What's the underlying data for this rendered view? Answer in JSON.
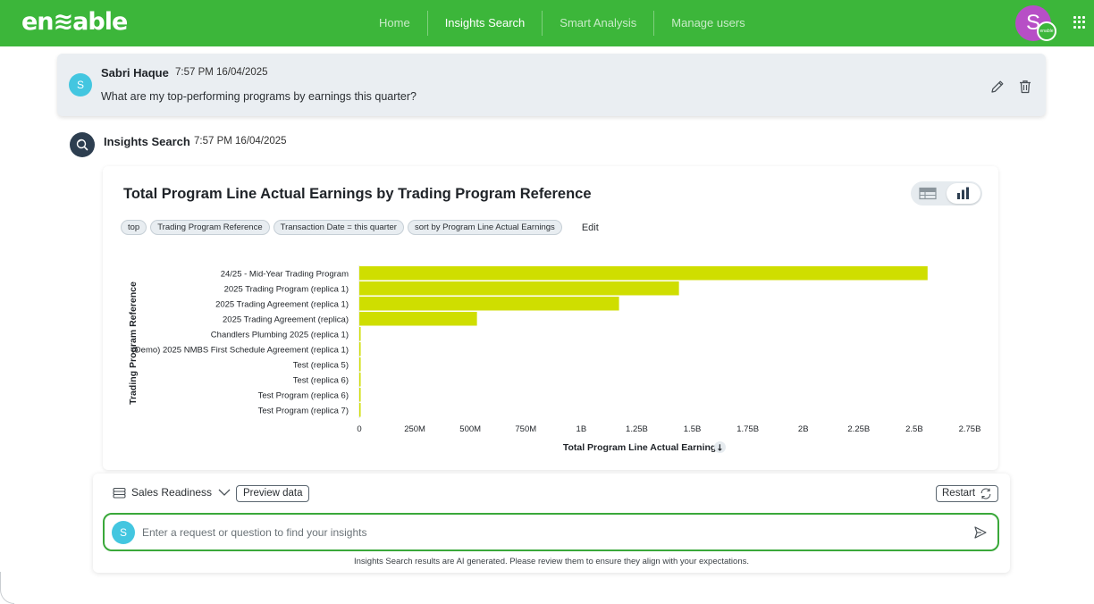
{
  "app": {
    "logo_text": "en≋able"
  },
  "nav": {
    "items": [
      {
        "label": "Home",
        "active": false
      },
      {
        "label": "Insights Search",
        "active": true
      },
      {
        "label": "Smart Analysis",
        "active": false
      },
      {
        "label": "Manage users",
        "active": false
      }
    ]
  },
  "user_avatar": {
    "initial": "S",
    "badge_text": "enable"
  },
  "user_message": {
    "avatar_initial": "S",
    "author": "Sabri Haque",
    "timestamp": "7:57 PM 16/04/2025",
    "text": "What are my top-performing programs by earnings this quarter?"
  },
  "insights_message": {
    "author": "Insights Search",
    "timestamp": "7:57 PM 16/04/2025"
  },
  "chips": [
    "top",
    "Trading Program Reference",
    "Transaction Date = this quarter",
    "sort by Program Line Actual Earnings"
  ],
  "edit_link": "Edit",
  "chart_data": {
    "type": "bar",
    "orientation": "horizontal",
    "title": "Total Program Line Actual Earnings by Trading Program Reference",
    "xlabel": "Total Program Line Actual Earnings",
    "ylabel": "Trading Program Reference",
    "sort_indicator": "↓",
    "categories": [
      "24/25 - Mid-Year Trading Program",
      "2025 Trading Program (replica 1)",
      "2025 Trading Agreement (replica 1)",
      "2025 Trading Agreement (replica)",
      "Chandlers Plumbing 2025 (replica 1)",
      "(Demo) 2025 NMBS First Schedule Agreement (replica 1)",
      "Test (replica 5)",
      "Test (replica 6)",
      "Test Program (replica 6)",
      "Test Program (replica 7)"
    ],
    "values": [
      2560000000,
      1440000000,
      1170000000,
      530000000,
      3000000,
      2000000,
      1000000,
      1000000,
      1000000,
      1000000
    ],
    "xlim": [
      0,
      2750000000
    ],
    "xticks": [
      0,
      250000000,
      500000000,
      750000000,
      1000000000,
      1250000000,
      1500000000,
      1750000000,
      2000000000,
      2250000000,
      2500000000,
      2750000000
    ],
    "xtick_labels": [
      "0",
      "250M",
      "500M",
      "750M",
      "1B",
      "1.25B",
      "1.5B",
      "1.75B",
      "2B",
      "2.25B",
      "2.5B",
      "2.75B"
    ],
    "bar_color": "#cfde00",
    "grid": false,
    "legend": "none"
  },
  "panel": {
    "datasource_label": "Sales Readiness",
    "preview_label": "Preview data",
    "restart_label": "Restart",
    "input_avatar_initial": "S",
    "input_placeholder": "Enter a request or question to find your insights",
    "input_value": "",
    "disclaimer": "Insights Search results are AI generated. Please review them to ensure they align with your expectations."
  },
  "colors": {
    "brand_green": "#3cb63a",
    "avatar_cyan": "#43c6e0",
    "avatar_purple": "#b74fc6",
    "insights_avatar": "#2d3e50",
    "bar": "#cfde00"
  }
}
